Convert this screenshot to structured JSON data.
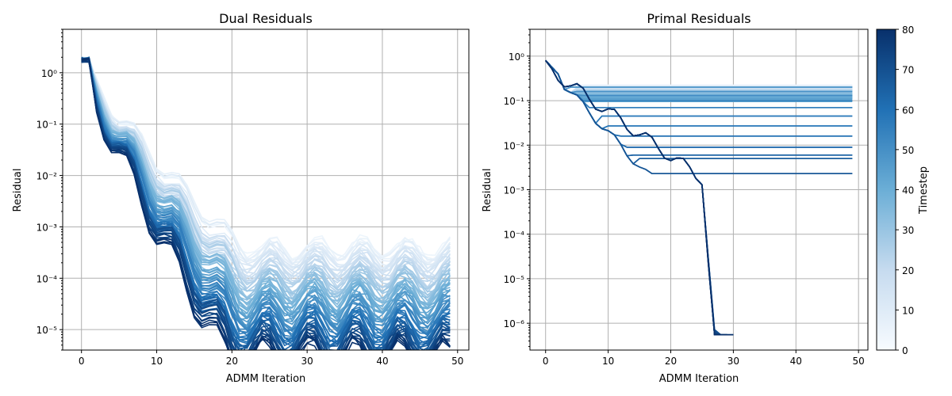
{
  "colors": {
    "cmap_low": "#f7fbff",
    "cmap_high": "#08306b",
    "grid": "#b0b0b0"
  },
  "chart_data": [
    {
      "type": "line",
      "title": "Dual Residuals",
      "xlabel": "ADMM Iteration",
      "ylabel": "Residual",
      "yscale": "log",
      "xlim": [
        -2.5,
        51.5
      ],
      "ylim": [
        4e-06,
        7
      ],
      "xticks": [
        0,
        10,
        20,
        30,
        40,
        50
      ],
      "xtick_labels": [
        "0",
        "10",
        "20",
        "30",
        "40",
        "50"
      ],
      "yticks": [
        1e-05,
        0.0001,
        0.001,
        0.01,
        0.1,
        1
      ],
      "ytick_labels": [
        "10⁻⁵",
        "10⁻⁴",
        "10⁻³",
        "10⁻²",
        "10⁻¹",
        "10⁰"
      ],
      "grid": true,
      "series_count": 80,
      "iterations": 50,
      "description_of_series": "one line per timestep, colored by timestep",
      "dip_iterations": [
        5,
        11,
        17,
        23,
        29,
        35,
        41,
        47
      ],
      "peak_iterations": [
        0,
        7,
        13,
        19,
        25,
        31,
        37,
        43
      ],
      "envelope": {
        "iteration": [
          0,
          7,
          13,
          19,
          25,
          31,
          37,
          43,
          49
        ],
        "late_timestep_value": [
          2.0,
          0.18,
          0.035,
          0.009,
          0.002,
          0.0005,
          0.00012,
          5e-05,
          8e-06
        ],
        "early_timestep_value": [
          2.0,
          0.2,
          0.06,
          0.015,
          0.004,
          0.002,
          0.0009,
          0.0005,
          0.0004
        ]
      }
    },
    {
      "type": "line",
      "title": "Primal Residuals",
      "xlabel": "ADMM Iteration",
      "ylabel": "Residual",
      "yscale": "log",
      "xlim": [
        -2.5,
        51.5
      ],
      "ylim": [
        2.5e-07,
        4
      ],
      "xticks": [
        0,
        10,
        20,
        30,
        40,
        50
      ],
      "xtick_labels": [
        "0",
        "10",
        "20",
        "30",
        "40",
        "50"
      ],
      "yticks": [
        1e-06,
        1e-05,
        0.0001,
        0.001,
        0.01,
        0.1,
        1
      ],
      "ytick_labels": [
        "10⁻⁶",
        "10⁻⁵",
        "10⁻⁴",
        "10⁻³",
        "10⁻²",
        "10⁻¹",
        "10⁰"
      ],
      "grid": true,
      "series_count": 80,
      "iterations": 50,
      "description_of_series": "one line per timestep; early timesteps plateau near 0.1–0.2, late timesteps drop sharply near iteration 28",
      "plateau_values": [
        0.2,
        0.16,
        0.13,
        0.1,
        0.07,
        0.045,
        0.027,
        0.016,
        0.009,
        0.006,
        0.005,
        0.0023
      ],
      "collapse_iteration": 28,
      "min_value": 5.5e-07
    }
  ],
  "colorbar": {
    "label": "Timestep",
    "min": 0,
    "max": 80,
    "ticks": [
      0,
      10,
      20,
      30,
      40,
      50,
      60,
      70,
      80
    ],
    "tick_labels": [
      "0",
      "10",
      "20",
      "30",
      "40",
      "50",
      "60",
      "70",
      "80"
    ]
  }
}
